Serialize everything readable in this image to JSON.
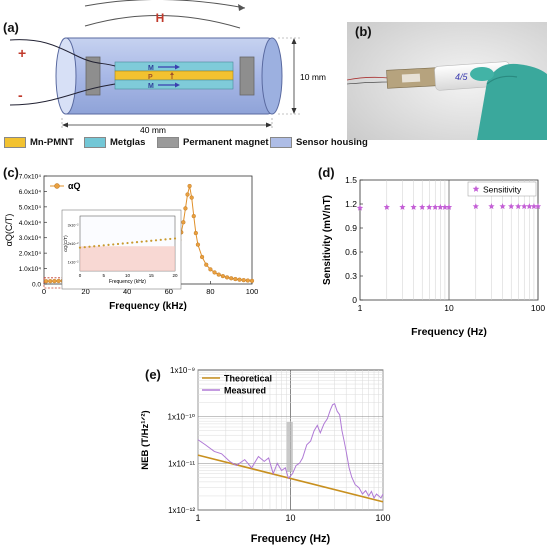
{
  "panels": {
    "a": {
      "label": "(a)",
      "field_label": "H",
      "plus": "+",
      "minus": "-",
      "layers": [
        "M",
        "P",
        "M"
      ],
      "dim_height": "10 mm",
      "dim_length": "40 mm"
    },
    "b": {
      "label": "(b)"
    },
    "c": {
      "label": "(c)"
    },
    "d": {
      "label": "(d)"
    },
    "e": {
      "label": "(e)"
    }
  },
  "legend": {
    "items": [
      {
        "label": "Mn-PMNT",
        "color": "#f2c230"
      },
      {
        "label": "Metglas",
        "color": "#73c7d6"
      },
      {
        "label": "Permanent magnet",
        "color": "#9a9a9a"
      },
      {
        "label": "Sensor housing",
        "color": "#aebde6"
      }
    ]
  },
  "chart_data": [
    {
      "panel": "c",
      "type": "line",
      "xlabel": "Frequency (kHz)",
      "ylabel": "αQ(C/T)",
      "legend": "αQ",
      "xlim": [
        0,
        100
      ],
      "ylim": [
        0,
        70000
      ],
      "xticks": [
        "0",
        "20",
        "40",
        "60",
        "80",
        "100"
      ],
      "yticks": [
        "0.0",
        "1.0x10⁴",
        "2.0x10⁴",
        "3.0x10⁴",
        "4.0x10⁴",
        "5.0x10⁴",
        "6.0x10⁴",
        "7.0x10⁴"
      ],
      "color": "#e0902a",
      "series": [
        {
          "x": [
            1,
            3,
            5,
            7,
            9,
            11,
            13,
            15,
            17,
            19,
            21,
            23,
            25,
            27,
            29,
            31,
            33,
            35,
            37,
            39,
            41,
            43,
            45,
            47,
            49,
            51,
            53,
            55,
            57,
            59,
            61,
            63,
            65,
            66,
            67,
            68,
            69,
            70,
            71,
            72,
            73,
            74,
            76,
            78,
            80,
            82,
            84,
            86,
            88,
            90,
            92,
            94,
            96,
            98,
            100
          ],
          "values": [
            1800,
            1850,
            1900,
            1950,
            2000,
            2050,
            2100,
            2200,
            2300,
            2400,
            2500,
            2600,
            2750,
            2900,
            3050,
            3250,
            3450,
            3700,
            3950,
            4250,
            4600,
            5000,
            5450,
            6000,
            6700,
            7500,
            8500,
            9800,
            11500,
            13800,
            17000,
            21500,
            28500,
            33500,
            40000,
            49000,
            58000,
            63500,
            56000,
            44000,
            33000,
            25500,
            17500,
            12500,
            9500,
            7500,
            6100,
            5100,
            4300,
            3700,
            3200,
            2800,
            2500,
            2250,
            2050
          ]
        }
      ],
      "inset": {
        "xlabel": "Frequency (kHz)",
        "ylabel": "αQ(C/T)",
        "xticks": [
          "0",
          "5",
          "10",
          "15",
          "20"
        ],
        "yticks": [
          "1x10⁻²",
          "2x10⁻²",
          "3x10⁻²"
        ],
        "x": [
          0,
          1,
          2,
          3,
          4,
          5,
          6,
          7,
          8,
          9,
          10,
          11,
          12,
          13,
          14,
          15,
          16,
          17,
          18,
          19,
          20
        ],
        "values": [
          0.0182,
          0.0184,
          0.0186,
          0.0188,
          0.019,
          0.0192,
          0.0194,
          0.0196,
          0.0198,
          0.02,
          0.0202,
          0.0204,
          0.0206,
          0.0208,
          0.021,
          0.0212,
          0.0214,
          0.0216,
          0.0218,
          0.022,
          0.0222
        ]
      }
    },
    {
      "panel": "d",
      "type": "scatter",
      "xlabel": "Frequency (Hz)",
      "ylabel": "Sensitivity (mV/nT)",
      "legend": "Sensitivity",
      "xscale": "log",
      "xlim": [
        1,
        100
      ],
      "ylim": [
        0,
        1.5
      ],
      "xticks": [
        "1",
        "10",
        "100"
      ],
      "yticks": [
        "0",
        "0.3",
        "0.6",
        "0.9",
        "1.2",
        "1.5"
      ],
      "color": "#c45fd6",
      "series": [
        {
          "x": [
            1,
            2,
            3,
            4,
            5,
            6,
            7,
            8,
            9,
            10,
            20,
            30,
            40,
            50,
            60,
            70,
            80,
            90,
            100
          ],
          "values": [
            1.15,
            1.16,
            1.16,
            1.16,
            1.16,
            1.16,
            1.16,
            1.16,
            1.16,
            1.16,
            1.17,
            1.17,
            1.17,
            1.17,
            1.17,
            1.17,
            1.17,
            1.17,
            1.17
          ]
        }
      ]
    },
    {
      "panel": "e",
      "type": "line",
      "xlabel": "Frequency (Hz)",
      "ylabel": "NEB (T/Hz¹ᐟ²)",
      "xscale": "log",
      "yscale": "log",
      "xlim": [
        1,
        100
      ],
      "ylim": [
        1e-12,
        1e-09
      ],
      "xticks": [
        "1",
        "10",
        "100"
      ],
      "yticks": [
        "1x10⁻¹²",
        "1x10⁻¹¹",
        "1x10⁻¹⁰",
        "1x10⁻⁹"
      ],
      "series": [
        {
          "name": "Theoretical",
          "color": "#c8901f",
          "x": [
            1,
            100
          ],
          "values": [
            1.5e-11,
            1.5e-12
          ]
        },
        {
          "name": "Measured",
          "color": "#b07ad6",
          "x": [
            1,
            1.2,
            1.5,
            1.8,
            2.2,
            2.6,
            3.2,
            3.8,
            4.5,
            5.2,
            5.8,
            6.5,
            7.2,
            8,
            8.8,
            9.5,
            10.5,
            11.5,
            12.5,
            13.5,
            15,
            16.5,
            18,
            19.5,
            21,
            23,
            25,
            27,
            28.5,
            30,
            32,
            34,
            36,
            38,
            40,
            43,
            46,
            50,
            55,
            60,
            65,
            70,
            75,
            80,
            85,
            90,
            95,
            100
          ],
          "values": [
            3.2e-11,
            2.5e-11,
            1.8e-11,
            1.6e-11,
            1.1e-11,
            9e-12,
            1.2e-11,
            8e-12,
            1.4e-11,
            1.1e-11,
            1.3e-11,
            6e-12,
            1e-11,
            7e-12,
            8e-12,
            4.8e-12,
            6e-12,
            9e-12,
            1e-11,
            1.3e-11,
            2.5e-11,
            3e-11,
            5e-11,
            6.5e-11,
            4.5e-11,
            7e-11,
            9e-11,
            1.4e-10,
            1.8e-10,
            1.9e-10,
            1.3e-10,
            1.1e-10,
            5e-11,
            3e-11,
            1.8e-11,
            8e-12,
            5e-12,
            3.5e-12,
            3e-12,
            2.2e-12,
            2.6e-12,
            2e-12,
            2.5e-12,
            1.8e-12,
            2.2e-12,
            2e-12,
            1.8e-12,
            2.2e-12
          ]
        }
      ]
    }
  ]
}
